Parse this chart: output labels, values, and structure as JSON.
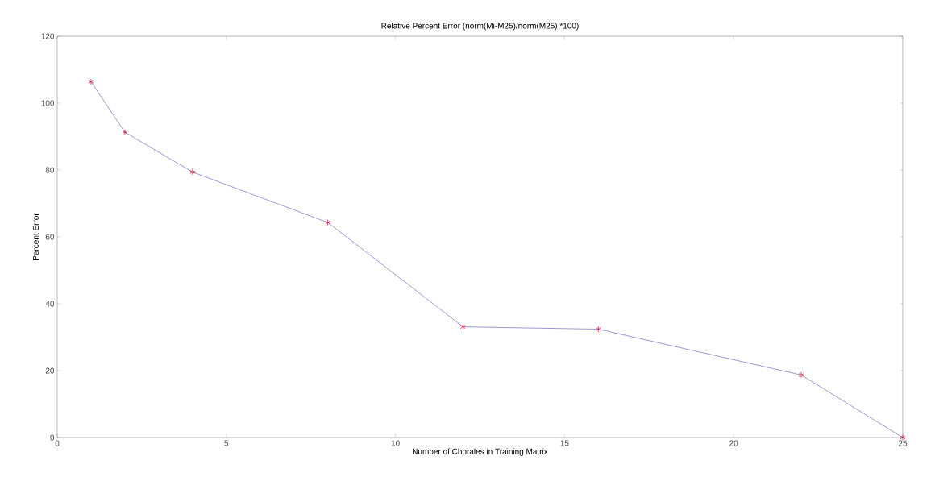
{
  "chart_data": {
    "type": "line",
    "title": "Relative Percent Error (norm(Mi-M25)/norm(M25) *100)",
    "xlabel": "Number of Chorales in Training Matrix",
    "ylabel": "Percent Error",
    "x": [
      1,
      2,
      4,
      8,
      12,
      16,
      22,
      25
    ],
    "series": [
      {
        "color": "#5555bb",
        "values": [
          106.4,
          91.3,
          79.4,
          64.3,
          33.1,
          32.4,
          18.7,
          0
        ]
      }
    ],
    "marker": "cross",
    "xlim": [
      0,
      25
    ],
    "ylim": [
      0,
      120
    ],
    "xticks": [
      0,
      5,
      10,
      15,
      20,
      25
    ],
    "yticks": [
      0,
      20,
      40,
      60,
      80,
      100,
      120
    ],
    "grid": false
  }
}
